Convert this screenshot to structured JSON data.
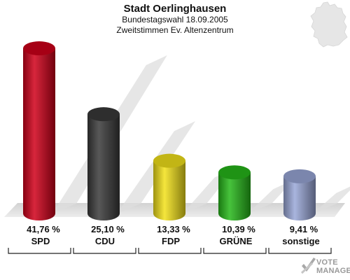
{
  "header": {
    "title": "Stadt Oerlinghausen",
    "subtitle": "Bundestagswahl 18.09.2005",
    "subtitle2": "Zweitstimmen Ev. Altenzentrum"
  },
  "chart_data": {
    "type": "bar",
    "title": "Stadt Oerlinghausen",
    "subtitle": "Bundestagswahl 18.09.2005 · Zweitstimmen Ev. Altenzentrum",
    "categories": [
      "SPD",
      "CDU",
      "FDP",
      "GRÜNE",
      "sonstige"
    ],
    "values": [
      41.76,
      25.1,
      13.33,
      10.39,
      9.41
    ],
    "value_labels": [
      "41,76 %",
      "25,10 %",
      "13,33 %",
      "10,39 %",
      "9,41 %"
    ],
    "colors": [
      "#d0001a",
      "#3a3a3a",
      "#f3e21a",
      "#27b81a",
      "#9aa8d8"
    ],
    "ylim": [
      0,
      45
    ],
    "grid": false,
    "legend": "none"
  },
  "logo": {
    "line1": "VOTE",
    "line2": "MANAGER"
  }
}
